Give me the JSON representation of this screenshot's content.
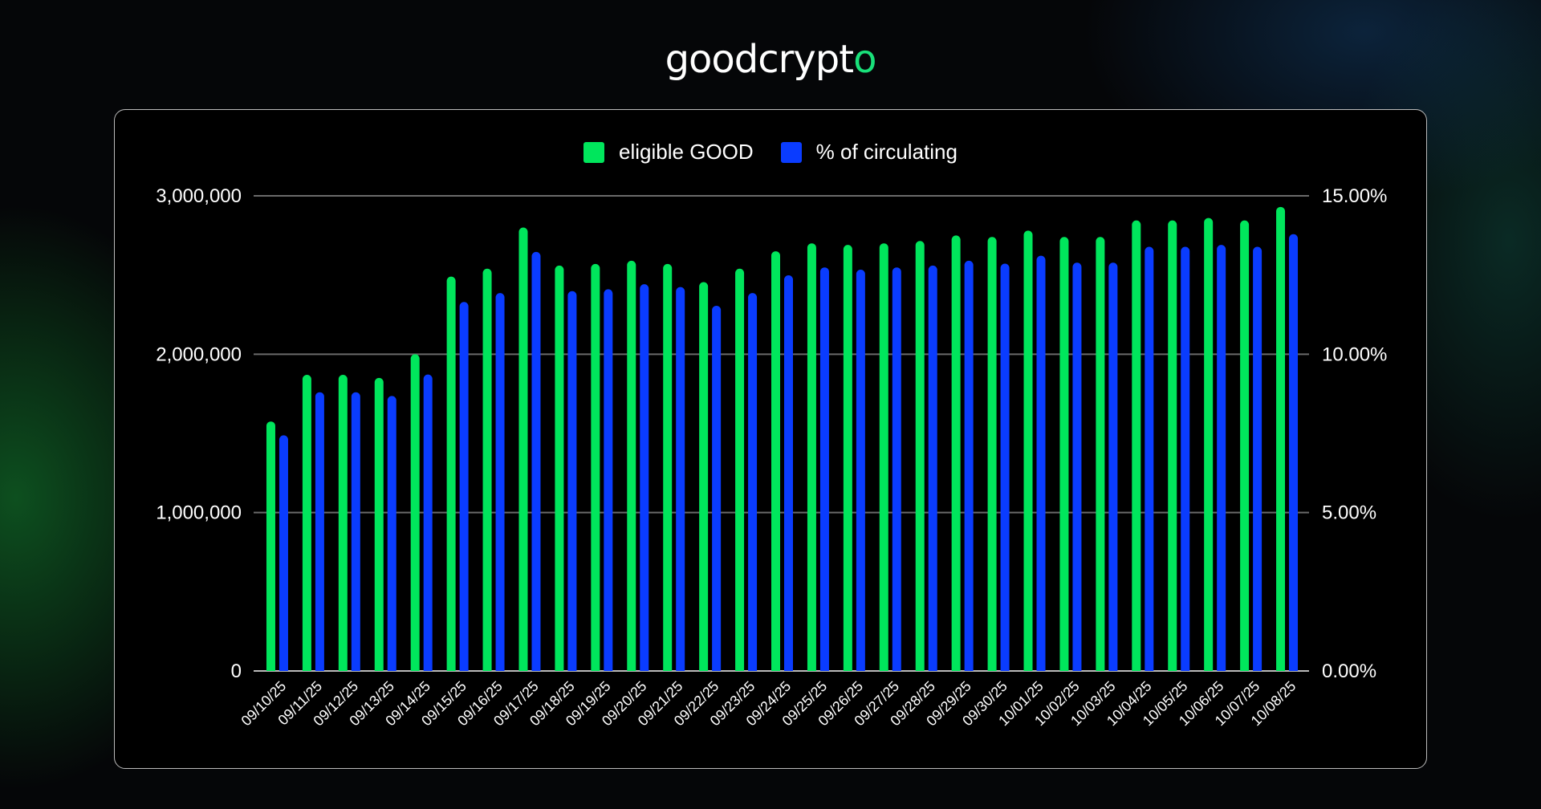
{
  "brand": {
    "logo_text": "goodcrypto",
    "logo_x": "x"
  },
  "chart_data": {
    "type": "bar",
    "title": "",
    "legend_position": "top",
    "grid": true,
    "categories": [
      "09/10/25",
      "09/11/25",
      "09/12/25",
      "09/13/25",
      "09/14/25",
      "09/15/25",
      "09/16/25",
      "09/17/25",
      "09/18/25",
      "09/19/25",
      "09/20/25",
      "09/21/25",
      "09/22/25",
      "09/23/25",
      "09/24/25",
      "09/25/25",
      "09/26/25",
      "09/27/25",
      "09/28/25",
      "09/29/25",
      "09/30/25",
      "10/01/25",
      "10/02/25",
      "10/03/25",
      "10/04/25",
      "10/05/25",
      "10/06/25",
      "10/07/25",
      "10/08/25"
    ],
    "series": [
      {
        "name": "eligible GOOD",
        "axis": "left",
        "color": "#00e65c",
        "values": [
          1575000,
          1870000,
          1870000,
          1850000,
          2000000,
          2490000,
          2540000,
          2800000,
          2560000,
          2570000,
          2590000,
          2570000,
          2455000,
          2540000,
          2650000,
          2700000,
          2690000,
          2700000,
          2715000,
          2750000,
          2740000,
          2780000,
          2740000,
          2740000,
          2845000,
          2845000,
          2860000,
          2845000,
          2930000
        ]
      },
      {
        "name": "% of circulating",
        "axis": "right",
        "color": "#0a3cff",
        "values": [
          7.44,
          8.8,
          8.8,
          8.68,
          9.36,
          11.65,
          11.93,
          13.23,
          11.99,
          12.05,
          12.21,
          12.12,
          11.53,
          11.93,
          12.49,
          12.74,
          12.67,
          12.74,
          12.8,
          12.95,
          12.86,
          13.11,
          12.89,
          12.89,
          13.39,
          13.39,
          13.45,
          13.39,
          13.79
        ]
      }
    ],
    "y_left": {
      "lim": [
        0,
        3000000
      ],
      "ticks": [
        "0",
        "1,000,000",
        "2,000,000",
        "3,000,000"
      ]
    },
    "y_right": {
      "lim": [
        0,
        15
      ],
      "unit": "%",
      "ticks": [
        "0.00%",
        "5.00%",
        "10.00%",
        "15.00%"
      ]
    }
  }
}
